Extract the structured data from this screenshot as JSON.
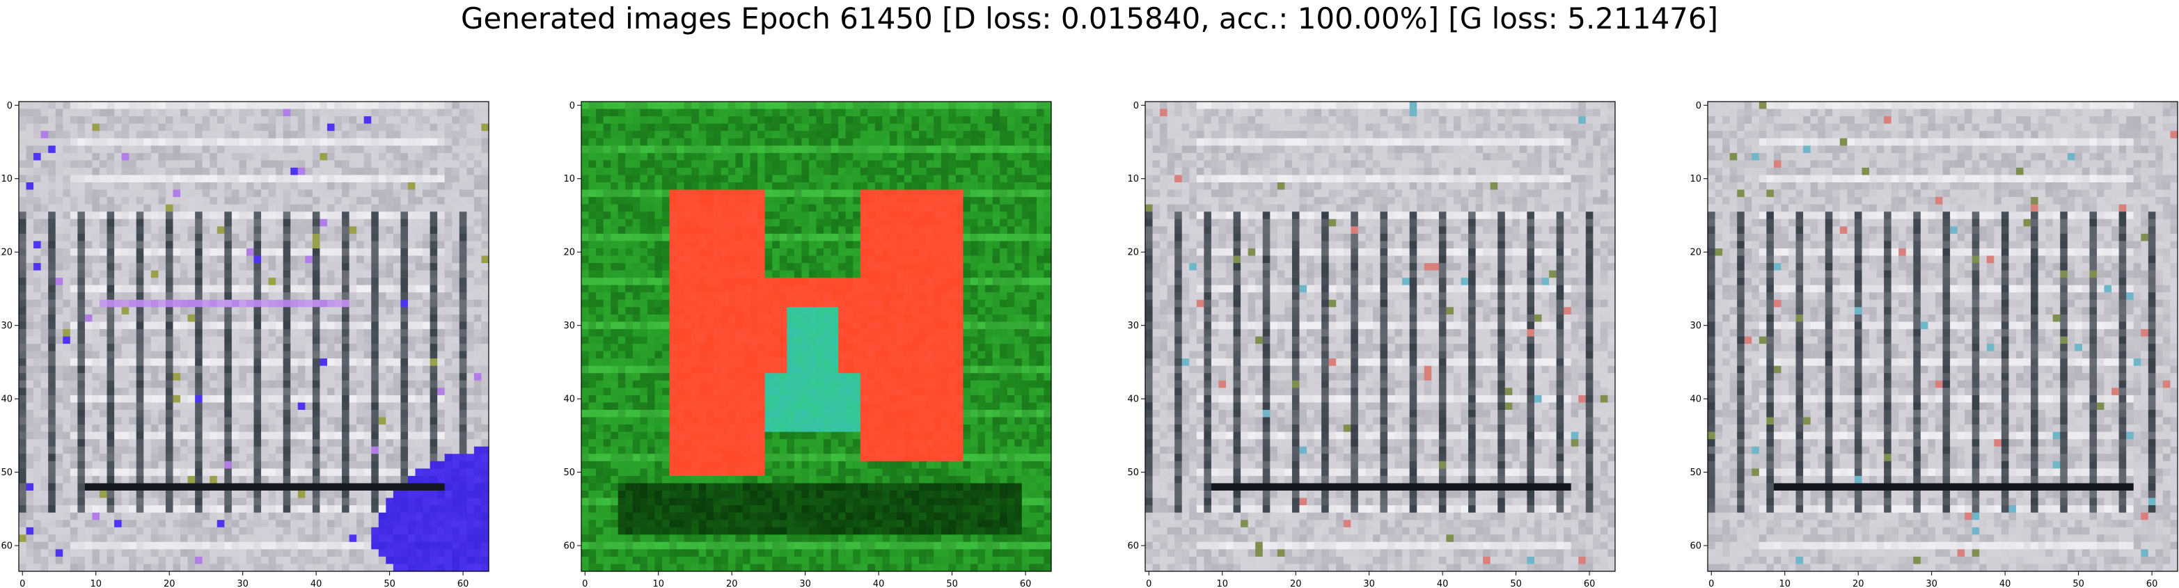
{
  "title": "Generated images Epoch 61450 [D loss: 0.015840, acc.: 100.00%] [G loss: 5.211476]",
  "tick_labels": [
    "0",
    "10",
    "20",
    "30",
    "40",
    "50",
    "60"
  ],
  "image_size": 64,
  "panels": [
    {
      "palette": "grey",
      "base": "#c9c6cf",
      "dark": "#1f2a33",
      "accents": [
        "#4d34f0",
        "#b27de6",
        "#9aa04a"
      ]
    },
    {
      "palette": "green",
      "base": "#1f8a1f",
      "dark": "#0a3d0a",
      "accents": [
        "#ff4a2a",
        "#2fcf7a",
        "#37c2a8"
      ]
    },
    {
      "palette": "grey",
      "base": "#cbc8d0",
      "dark": "#1c2630",
      "accents": [
        "#d9807c",
        "#6fb7c8",
        "#7f8f4f"
      ]
    },
    {
      "palette": "grey",
      "base": "#cbc8d0",
      "dark": "#1c2630",
      "accents": [
        "#d9807c",
        "#6fb7c8",
        "#7f8f4f"
      ]
    }
  ]
}
